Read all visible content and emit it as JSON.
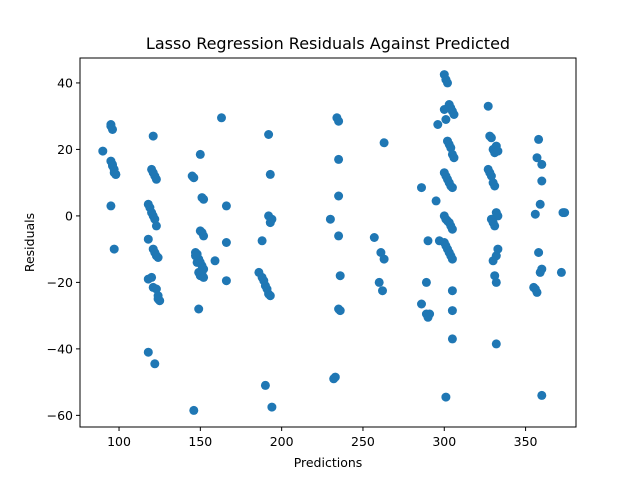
{
  "chart_data": {
    "type": "scatter",
    "title": "Lasso Regression Residuals Against Predicted",
    "xlabel": "Predictions",
    "ylabel": "Residuals",
    "xlim": [
      76,
      381
    ],
    "ylim": [
      -63.5,
      47.5
    ],
    "xticks": [
      100,
      150,
      200,
      250,
      300,
      350
    ],
    "yticks": [
      -60,
      -40,
      -20,
      0,
      20,
      40
    ],
    "grid": false,
    "marker_color": "#1f77b4",
    "series": [
      {
        "x": [
          90,
          95,
          95,
          96,
          96,
          97,
          97,
          98,
          98,
          95,
          97,
          95,
          96,
          118,
          119,
          120,
          121,
          122,
          123,
          124,
          120,
          121,
          122,
          123,
          121,
          122,
          123,
          124,
          125,
          118,
          118,
          120,
          121,
          123,
          124,
          118,
          121,
          122,
          145,
          146,
          147,
          148,
          149,
          150,
          151,
          152,
          146,
          148,
          149,
          150,
          151,
          152,
          150,
          151,
          152,
          150,
          151,
          152,
          149,
          159,
          163,
          166,
          166,
          166,
          147,
          186,
          188,
          189,
          190,
          191,
          192,
          193,
          194,
          192,
          193,
          192,
          194,
          190,
          193,
          188,
          230,
          233,
          234,
          235,
          235,
          235,
          235,
          235,
          236,
          236,
          232,
          257,
          260,
          261,
          262,
          263,
          263,
          286,
          286,
          289,
          289,
          290,
          290,
          291,
          295,
          296,
          297,
          300,
          301,
          302,
          303,
          304,
          305,
          306,
          300,
          301,
          302,
          303,
          304,
          305,
          306,
          300,
          301,
          302,
          303,
          304,
          305,
          300,
          301,
          302,
          303,
          304,
          305,
          300,
          301,
          302,
          303,
          304,
          305,
          305,
          305,
          305,
          301,
          327,
          328,
          329,
          330,
          331,
          332,
          333,
          327,
          328,
          329,
          330,
          331,
          332,
          333,
          329,
          330,
          331,
          332,
          333,
          332,
          330,
          331,
          332,
          355,
          356,
          357,
          358,
          359,
          360,
          356,
          358,
          359,
          360,
          360,
          360,
          357,
          372,
          373,
          374,
          373,
          373
        ]
      }
    ]
  }
}
